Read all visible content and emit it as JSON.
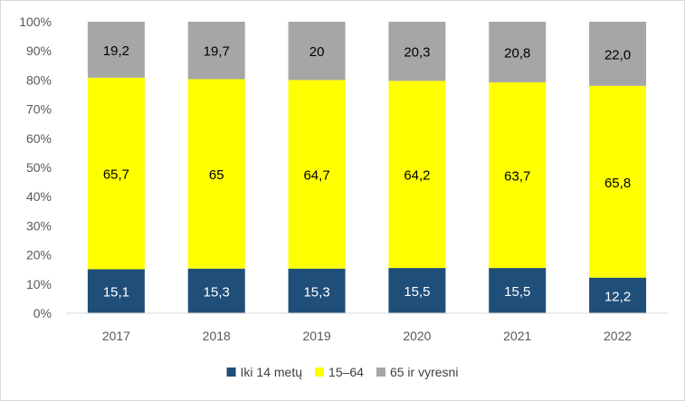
{
  "chart_data": {
    "type": "bar",
    "stacked": true,
    "categories": [
      "2017",
      "2018",
      "2019",
      "2020",
      "2021",
      "2022"
    ],
    "series": [
      {
        "name": "Iki 14 metų",
        "color": "#1f4e79",
        "label_color": "#ffffff",
        "values": [
          15.1,
          15.3,
          15.3,
          15.5,
          15.5,
          12.2
        ],
        "labels": [
          "15,1",
          "15,3",
          "15,3",
          "15,5",
          "15,5",
          "12,2"
        ]
      },
      {
        "name": "15–64",
        "color": "#ffff00",
        "label_color": "#000000",
        "values": [
          65.7,
          65,
          64.7,
          64.2,
          63.7,
          65.8
        ],
        "labels": [
          "65,7",
          "65",
          "64,7",
          "64,2",
          "63,7",
          "65,8"
        ]
      },
      {
        "name": "65 ir vyresni",
        "color": "#a6a6a6",
        "label_color": "#000000",
        "values": [
          19.2,
          19.7,
          20,
          20.3,
          20.8,
          22.0
        ],
        "labels": [
          "19,2",
          "19,7",
          "20",
          "20,3",
          "20,8",
          "22,0"
        ]
      }
    ],
    "y_ticks": [
      "0%",
      "10%",
      "20%",
      "30%",
      "40%",
      "50%",
      "60%",
      "70%",
      "80%",
      "90%",
      "100%"
    ],
    "ylim": [
      0,
      100
    ],
    "title": "",
    "xlabel": "",
    "ylabel": "",
    "grid": false,
    "legend_position": "bottom"
  }
}
